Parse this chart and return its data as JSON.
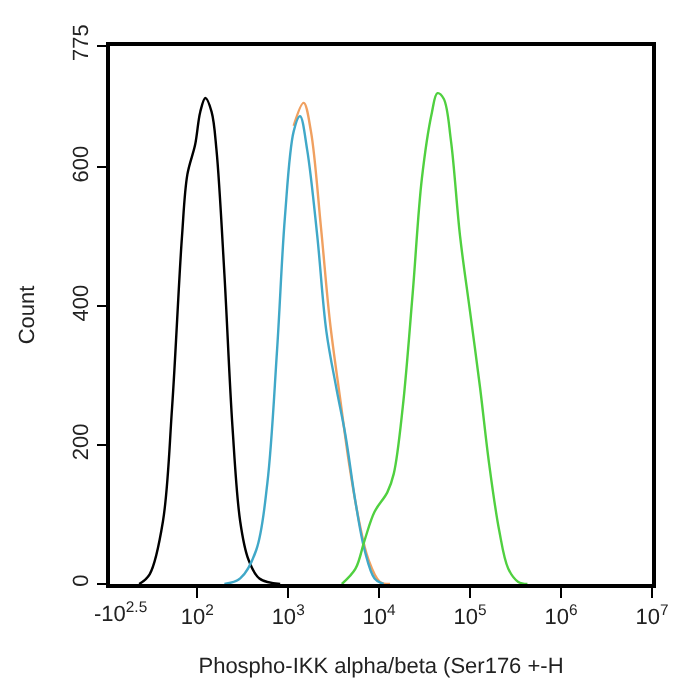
{
  "chart_data": {
    "type": "line",
    "xlabel": "Phospho-IKK alpha/beta (Ser176 +-H",
    "ylabel": "Count",
    "log": "x",
    "annotations": [
      "-10$^{2.5}$"
    ],
    "xlim": [
      11,
      10000000
    ],
    "ylim": [
      0,
      775
    ],
    "xticks": [
      {
        "value": 100,
        "label": "10$^{2}$"
      },
      {
        "value": 1000,
        "label": "10$^{3}$"
      },
      {
        "value": 10000,
        "label": "10$^{4}$"
      },
      {
        "value": 100000,
        "label": "10$^{5}$"
      },
      {
        "value": 1000000,
        "label": "10$^{6}$"
      },
      {
        "value": 10000000,
        "label": "10$^{7}$"
      }
    ],
    "yticks": [
      0,
      200,
      400,
      600,
      775
    ],
    "marker": "none",
    "line_style": "solid",
    "series": [
      {
        "color": "#000000",
        "x": [
          23,
          30,
          42,
          53,
          68,
          78,
          95,
          108,
          123,
          144,
          163,
          199,
          244,
          297,
          364,
          483,
          817
        ],
        "values": [
          0,
          14,
          90,
          255,
          500,
          590,
          633,
          680,
          700,
          680,
          625,
          447,
          227,
          90,
          36,
          8,
          0
        ]
      },
      {
        "color": "#f0a060",
        "x": [
          1150,
          1480,
          1780,
          2290,
          2880,
          3720,
          4680,
          6030,
          7590,
          10200,
          13200
        ],
        "values": [
          660,
          693,
          652,
          515,
          378,
          268,
          173,
          90,
          36,
          3,
          0
        ]
      },
      {
        "color": "#40a8c8",
        "x": [
          199,
          297,
          446,
          590,
          755,
          922,
          1150,
          1350,
          1620,
          2090,
          2630,
          3390,
          4270,
          5500,
          6920,
          8910,
          11200
        ],
        "values": [
          0,
          8,
          49,
          145,
          337,
          529,
          652,
          674,
          625,
          501,
          364,
          282,
          214,
          118,
          49,
          8,
          0
        ]
      },
      {
        "color": "#50d040",
        "x": [
          3890,
          5500,
          6920,
          8910,
          12300,
          14500,
          18200,
          23400,
          29500,
          38000,
          43700,
          51300,
          61700,
          77600,
          100000,
          129000,
          162000,
          209000,
          263000,
          339000,
          427000
        ],
        "values": [
          0,
          22,
          63,
          104,
          132,
          159,
          255,
          419,
          584,
          679,
          707,
          699,
          638,
          501,
          392,
          282,
          173,
          77,
          22,
          3,
          0
        ]
      }
    ]
  }
}
